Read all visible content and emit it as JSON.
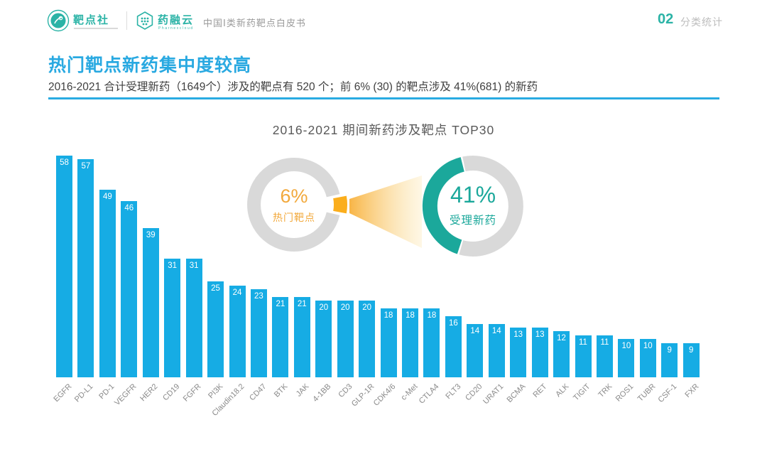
{
  "header": {
    "logo1_name": "靶点社",
    "logo2_name": "药融云",
    "logo2_tagline": "Pharnexcloud",
    "doc_title": "中国Ⅰ类新药靶点白皮书",
    "section_number": "02",
    "section_label": "分类统计"
  },
  "headline": {
    "title": "热门靶点新药集中度较高",
    "subtitle": "2016-2021 合计受理新药（1649个）涉及的靶点有 520 个；前 6% (30) 的靶点涉及 41%(681) 的新药"
  },
  "colors": {
    "accent_cyan": "#29ABE2",
    "bar_cyan": "#16ACE4",
    "brand_teal": "#2BB3A6",
    "donut_teal": "#1BA89B",
    "donut_gray": "#D9D9D9",
    "wedge_yellow": "#FBAE1C",
    "orange_text": "#F2A93C",
    "beam_gradient_start": "#F8B13C",
    "beam_gradient_end": "#FBE4A8"
  },
  "chart_data": [
    {
      "type": "bar",
      "title": "2016-2021 期间新药涉及靶点 TOP30",
      "categories": [
        "EGFR",
        "PD-L1",
        "PD-1",
        "VEGFR",
        "HER2",
        "CD19",
        "FGFR",
        "PI3K",
        "Claudin18.2",
        "CD47",
        "BTK",
        "JAK",
        "4-1BB",
        "CD3",
        "GLP-1R",
        "CDK4/6",
        "c-Met",
        "CTLA4",
        "FLT3",
        "CD20",
        "URAT1",
        "BCMA",
        "RET",
        "ALK",
        "TIGIT",
        "TRK",
        "ROS1",
        "TUBR",
        "CSF-1",
        "FXR"
      ],
      "values": [
        58,
        57,
        49,
        46,
        39,
        31,
        31,
        25,
        24,
        23,
        21,
        21,
        20,
        20,
        20,
        18,
        18,
        18,
        16,
        14,
        14,
        13,
        13,
        12,
        11,
        11,
        10,
        10,
        9,
        9
      ],
      "xlabel": "",
      "ylabel": "",
      "ylim": [
        0,
        60
      ],
      "grid": false,
      "legend": false,
      "bar_color": "#16ACE4",
      "value_labels": "white, inside top of bars"
    },
    {
      "type": "pie",
      "subtype": "donut",
      "label": "6%",
      "caption": "热门靶点",
      "values": [
        6,
        94
      ],
      "colors": [
        "#FBAE1C",
        "#D9D9D9"
      ],
      "note": "6% wedge exploded at 3 o'clock"
    },
    {
      "type": "pie",
      "subtype": "donut",
      "label": "41%",
      "caption": "受理新药",
      "values": [
        41,
        59
      ],
      "colors": [
        "#1BA89B",
        "#D9D9D9"
      ],
      "note": "41% arc on left side of ring"
    }
  ]
}
